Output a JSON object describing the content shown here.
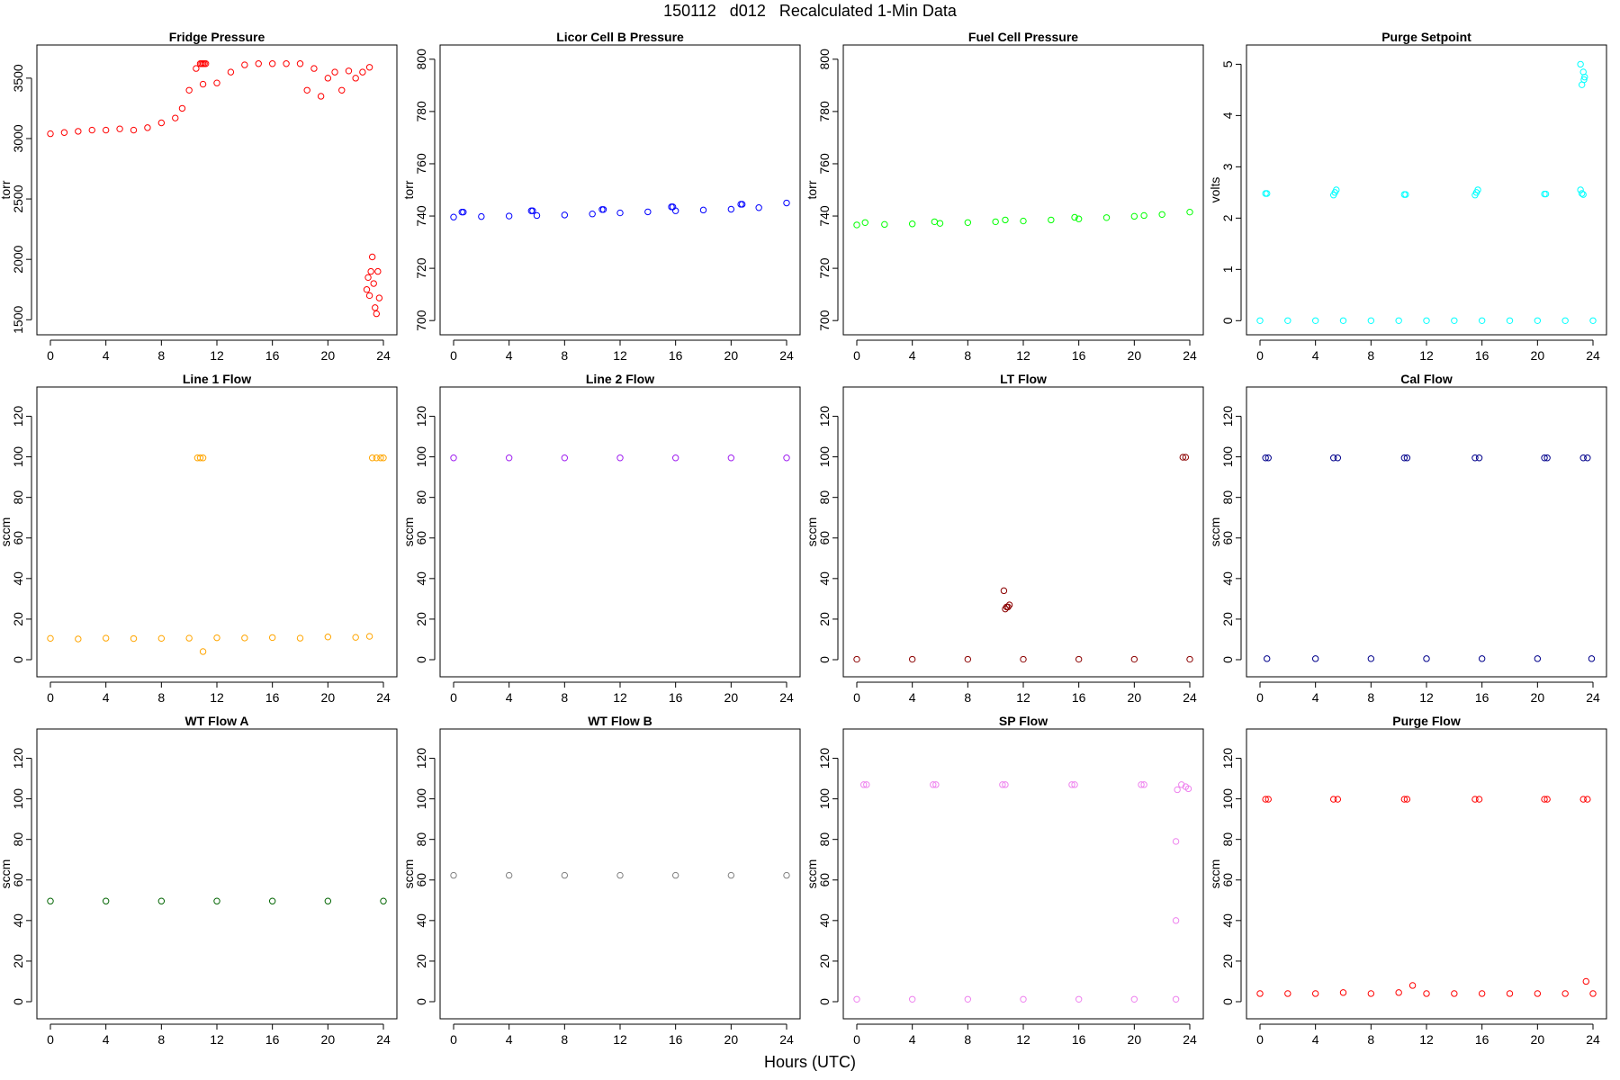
{
  "figure": {
    "title": "150112   d012   Recalculated 1-Min Data",
    "xlabel": "Hours (UTC)"
  },
  "x_axis": {
    "range": [
      0,
      24
    ],
    "ticks": [
      0,
      4,
      8,
      12,
      16,
      20,
      24
    ]
  },
  "chart_data": [
    {
      "type": "scatter",
      "title": "Fridge Pressure",
      "ylabel": "torr",
      "color": "#ff0000",
      "ylim": [
        1450,
        3700
      ],
      "yticks": [
        1500,
        2000,
        2500,
        3000,
        3500
      ],
      "series": [
        {
          "x": [
            0,
            1,
            2,
            3,
            4,
            5,
            6,
            7,
            8,
            9,
            9.5,
            10,
            10.5,
            11,
            12,
            13,
            14,
            15,
            16,
            17,
            18,
            18.5,
            19,
            19.5,
            20,
            20.5,
            21,
            21.5,
            22,
            22.5,
            23
          ],
          "values": [
            3040,
            3050,
            3060,
            3070,
            3070,
            3080,
            3070,
            3090,
            3130,
            3170,
            3250,
            3400,
            3580,
            3450,
            3460,
            3550,
            3610,
            3620,
            3620,
            3620,
            3620,
            3400,
            3580,
            3350,
            3500,
            3550,
            3400,
            3560,
            3500,
            3550,
            3590
          ]
        },
        {
          "x": [
            22.8,
            22.9,
            23.0,
            23.1,
            23.2,
            23.3,
            23.4,
            23.5,
            23.6,
            23.7
          ],
          "values": [
            1750,
            1850,
            1700,
            1900,
            2020,
            1800,
            1600,
            1550,
            1900,
            1680
          ]
        },
        {
          "x": [
            10.8,
            10.9,
            11.0,
            11.1,
            11.2
          ],
          "values": [
            3620,
            3620,
            3620,
            3620,
            3620
          ]
        }
      ]
    },
    {
      "type": "scatter",
      "title": "Licor Cell B Pressure",
      "ylabel": "torr",
      "color": "#0000ff",
      "ylim": [
        698,
        802
      ],
      "yticks": [
        700,
        720,
        740,
        760,
        780,
        800
      ],
      "series": [
        {
          "x": [
            0,
            2,
            4,
            6,
            8,
            10,
            12,
            14,
            16,
            18,
            20,
            22,
            24
          ],
          "values": [
            739.6,
            739.8,
            740.0,
            740.2,
            740.4,
            740.8,
            741.2,
            741.6,
            742.0,
            742.3,
            742.6,
            743.2,
            745.0
          ]
        },
        {
          "x": [
            0.6,
            0.7,
            5.6,
            5.7,
            10.7,
            10.8,
            15.7,
            15.8,
            20.7,
            20.8
          ],
          "values": [
            741.5,
            741.5,
            742.0,
            742.0,
            742.5,
            742.5,
            743.5,
            743.5,
            744.5,
            744.5
          ]
        }
      ]
    },
    {
      "type": "scatter",
      "title": "Fuel Cell Pressure",
      "ylabel": "torr",
      "color": "#00ff00",
      "ylim": [
        698,
        802
      ],
      "yticks": [
        700,
        720,
        740,
        760,
        780,
        800
      ],
      "series": [
        {
          "x": [
            0,
            2,
            4,
            6,
            8,
            10,
            12,
            14,
            16,
            18,
            20,
            22,
            24
          ],
          "values": [
            736.6,
            736.8,
            737.0,
            737.2,
            737.5,
            737.8,
            738.1,
            738.5,
            738.9,
            739.4,
            739.9,
            740.6,
            741.5
          ]
        },
        {
          "x": [
            0.6,
            5.6,
            10.7,
            15.7,
            20.7
          ],
          "values": [
            737.5,
            737.8,
            738.5,
            739.5,
            740.2
          ]
        }
      ]
    },
    {
      "type": "scatter",
      "title": "Purge Setpoint",
      "ylabel": "volts",
      "color": "#00ffff",
      "ylim": [
        -0.1,
        5.2
      ],
      "yticks": [
        0,
        1,
        2,
        3,
        4,
        5
      ],
      "series": [
        {
          "x": [
            0,
            2,
            4,
            6,
            8,
            10,
            12,
            14,
            16,
            18,
            20,
            22,
            24
          ],
          "values": [
            0,
            0,
            0,
            0,
            0,
            0,
            0,
            0,
            0,
            0,
            0,
            0,
            0
          ]
        },
        {
          "x": [
            0.4,
            0.5,
            5.3,
            5.4,
            5.5,
            10.4,
            10.5,
            15.5,
            15.6,
            15.7,
            20.5,
            20.6,
            23.1,
            23.2,
            23.3
          ],
          "values": [
            2.48,
            2.48,
            2.45,
            2.5,
            2.55,
            2.46,
            2.46,
            2.45,
            2.5,
            2.55,
            2.47,
            2.47,
            2.55,
            2.48,
            2.46
          ]
        },
        {
          "x": [
            23.1,
            23.2,
            23.3,
            23.35,
            23.4
          ],
          "values": [
            5.0,
            4.6,
            4.85,
            4.7,
            4.75
          ]
        }
      ]
    },
    {
      "type": "scatter",
      "title": "Line 1 Flow",
      "ylabel": "sccm",
      "color": "#ffa500",
      "ylim": [
        -4,
        130
      ],
      "yticks": [
        0,
        20,
        40,
        60,
        80,
        100,
        120
      ],
      "series": [
        {
          "x": [
            0,
            2,
            4,
            6,
            8,
            10,
            12,
            14,
            16,
            18,
            20,
            22,
            23
          ],
          "values": [
            10.5,
            10.2,
            10.6,
            10.4,
            10.5,
            10.6,
            10.8,
            10.7,
            10.9,
            10.6,
            11.2,
            11.0,
            11.5
          ]
        },
        {
          "x": [
            10.6,
            10.8,
            11.0,
            23.2,
            23.5,
            23.8,
            24.0
          ],
          "values": [
            99.5,
            99.5,
            99.5,
            99.5,
            99.5,
            99.5,
            99.5
          ]
        },
        {
          "x": [
            11.0
          ],
          "values": [
            4
          ]
        }
      ]
    },
    {
      "type": "scatter",
      "title": "Line 2 Flow",
      "ylabel": "sccm",
      "color": "#a020f0",
      "ylim": [
        -4,
        130
      ],
      "yticks": [
        0,
        20,
        40,
        60,
        80,
        100,
        120
      ],
      "series": [
        {
          "x": [
            0,
            4,
            8,
            12,
            16,
            20,
            24
          ],
          "values": [
            99.5,
            99.5,
            99.5,
            99.5,
            99.5,
            99.5,
            99.5
          ]
        }
      ]
    },
    {
      "type": "scatter",
      "title": "LT Flow",
      "ylabel": "sccm",
      "color": "#8b0000",
      "ylim": [
        -4,
        130
      ],
      "yticks": [
        0,
        20,
        40,
        60,
        80,
        100,
        120
      ],
      "series": [
        {
          "x": [
            0,
            4,
            8,
            12,
            16,
            20,
            24
          ],
          "values": [
            0.2,
            0.2,
            0.2,
            0.2,
            0.2,
            0.2,
            0.2
          ]
        },
        {
          "x": [
            10.6,
            10.7,
            10.8,
            10.9,
            11.0
          ],
          "values": [
            34,
            25,
            26,
            26,
            27
          ]
        },
        {
          "x": [
            23.5,
            23.7
          ],
          "values": [
            99.8,
            99.8
          ]
        }
      ]
    },
    {
      "type": "scatter",
      "title": "Cal Flow",
      "ylabel": "sccm",
      "color": "#00008b",
      "ylim": [
        -4,
        130
      ],
      "yticks": [
        0,
        20,
        40,
        60,
        80,
        100,
        120
      ],
      "series": [
        {
          "x": [
            0.5,
            4,
            8,
            12,
            16,
            20,
            23.9
          ],
          "values": [
            0.5,
            0.5,
            0.5,
            0.5,
            0.5,
            0.5,
            0.5
          ]
        },
        {
          "x": [
            0.4,
            0.6,
            5.3,
            5.6,
            10.4,
            10.6,
            15.5,
            15.8,
            20.5,
            20.7,
            23.3,
            23.6
          ],
          "values": [
            99.5,
            99.5,
            99.5,
            99.5,
            99.5,
            99.5,
            99.5,
            99.5,
            99.5,
            99.5,
            99.5,
            99.5
          ]
        }
      ]
    },
    {
      "type": "scatter",
      "title": "WT Flow A",
      "ylabel": "sccm",
      "color": "#006400",
      "ylim": [
        -4,
        130
      ],
      "yticks": [
        0,
        20,
        40,
        60,
        80,
        100,
        120
      ],
      "series": [
        {
          "x": [
            0,
            4,
            8,
            12,
            16,
            20,
            24
          ],
          "values": [
            49.6,
            49.6,
            49.6,
            49.6,
            49.6,
            49.6,
            49.6
          ]
        }
      ]
    },
    {
      "type": "scatter",
      "title": "WT Flow B",
      "ylabel": "sccm",
      "color": "#808080",
      "ylim": [
        -4,
        130
      ],
      "yticks": [
        0,
        20,
        40,
        60,
        80,
        100,
        120
      ],
      "series": [
        {
          "x": [
            0,
            4,
            8,
            12,
            16,
            20,
            24
          ],
          "values": [
            62.3,
            62.3,
            62.3,
            62.3,
            62.3,
            62.3,
            62.3
          ]
        }
      ]
    },
    {
      "type": "scatter",
      "title": "SP Flow",
      "ylabel": "sccm",
      "color": "#ee82ee",
      "ylim": [
        -4,
        130
      ],
      "yticks": [
        0,
        20,
        40,
        60,
        80,
        100,
        120
      ],
      "series": [
        {
          "x": [
            0,
            4,
            8,
            12,
            16,
            20,
            23
          ],
          "values": [
            1.2,
            1.2,
            1.2,
            1.2,
            1.2,
            1.2,
            1.2
          ]
        },
        {
          "x": [
            0.5,
            0.7,
            5.5,
            5.7,
            10.5,
            10.7,
            15.5,
            15.7,
            20.5,
            20.7,
            23.1,
            23.4,
            23.7,
            23.9
          ],
          "values": [
            107,
            107,
            107,
            107,
            107,
            107,
            107,
            107,
            107,
            107,
            104.5,
            107,
            106,
            105
          ]
        },
        {
          "x": [
            23.0,
            23.0
          ],
          "values": [
            79,
            40
          ]
        }
      ]
    },
    {
      "type": "scatter",
      "title": "Purge Flow",
      "ylabel": "sccm",
      "color": "#ff0000",
      "ylim": [
        -4,
        130
      ],
      "yticks": [
        0,
        20,
        40,
        60,
        80,
        100,
        120
      ],
      "series": [
        {
          "x": [
            0,
            2,
            4,
            6,
            8,
            10,
            11,
            12,
            14,
            16,
            18,
            20,
            22,
            23.5,
            24
          ],
          "values": [
            4,
            4,
            4,
            4.5,
            4,
            4.5,
            8,
            4,
            4,
            4,
            4,
            4,
            4,
            10,
            4
          ]
        },
        {
          "x": [
            0.4,
            0.6,
            5.3,
            5.6,
            10.4,
            10.6,
            15.5,
            15.8,
            20.5,
            20.7,
            23.3,
            23.6
          ],
          "values": [
            99.8,
            99.8,
            99.8,
            99.8,
            99.8,
            99.8,
            99.8,
            99.8,
            99.8,
            99.8,
            99.8,
            99.8
          ]
        }
      ]
    }
  ]
}
